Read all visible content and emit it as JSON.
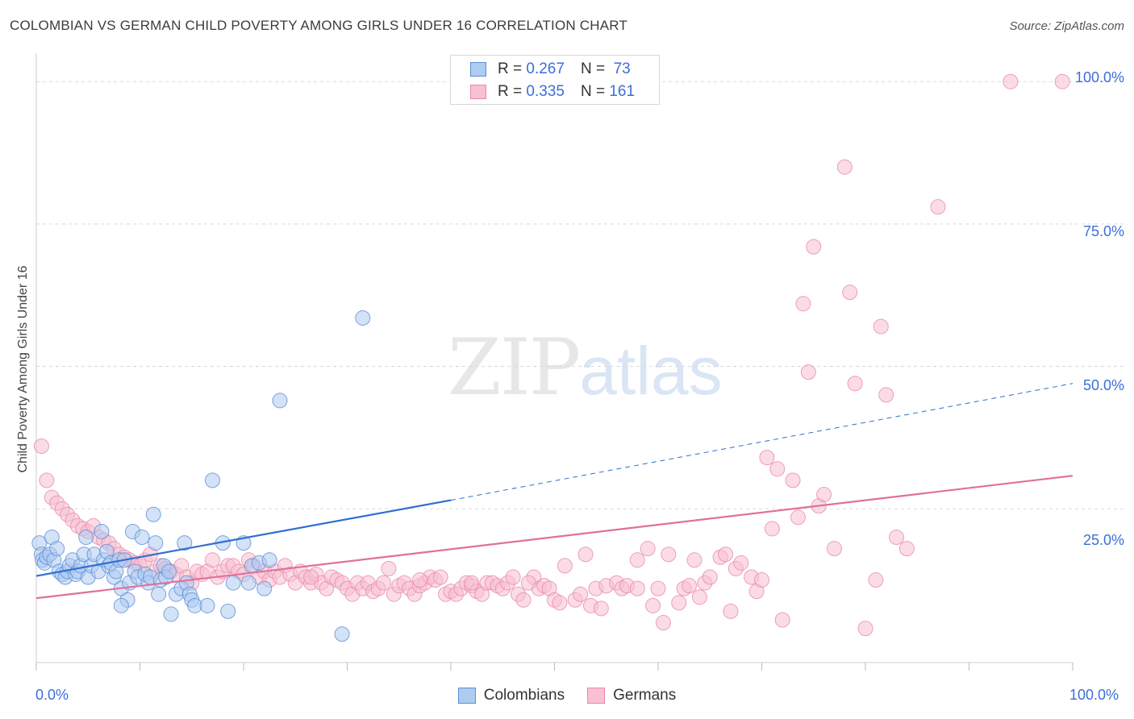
{
  "title": "COLOMBIAN VS GERMAN CHILD POVERTY AMONG GIRLS UNDER 16 CORRELATION CHART",
  "source": "Source: ZipAtlas.com",
  "watermark": {
    "zip": "ZIP",
    "atlas": "atlas"
  },
  "legend": {
    "rows": [
      {
        "r_label": "R =",
        "r_value": "0.267",
        "n_label": "N =",
        "n_value": "73"
      },
      {
        "r_label": "R =",
        "r_value": "0.335",
        "n_label": "N =",
        "n_value": "161"
      }
    ]
  },
  "colors": {
    "colombians_fill": "#aecbf0",
    "colombians_stroke": "#5b8fd6",
    "colombians_line": "#2f6fd0",
    "germans_fill": "#f8c0d2",
    "germans_stroke": "#e889a8",
    "germans_line": "#e0709a",
    "grid": "#d9d9d9",
    "tick_label": "#3a6fd8"
  },
  "chart_data": {
    "type": "scatter",
    "title": "COLOMBIAN VS GERMAN CHILD POVERTY AMONG GIRLS UNDER 16 CORRELATION CHART",
    "xlabel": "",
    "ylabel": "Child Poverty Among Girls Under 16",
    "xlim": [
      0,
      100
    ],
    "ylim": [
      -2,
      103
    ],
    "x_tick_labels": [
      "0.0%",
      "100.0%"
    ],
    "y_ticks": [
      25,
      50,
      75,
      100
    ],
    "y_tick_labels": [
      "25.0%",
      "50.0%",
      "75.0%",
      "100.0%"
    ],
    "grid": true,
    "legend_position": "top-center",
    "series": [
      {
        "name": "Colombians",
        "R": 0.267,
        "N": 73,
        "trend": {
          "x0": 0,
          "y0": 13.2,
          "x1": 40,
          "y1": 26.5,
          "dashed_to_x": 100,
          "dashed_to_y": 47
        },
        "points": [
          [
            0.3,
            19
          ],
          [
            0.5,
            17
          ],
          [
            0.6,
            16
          ],
          [
            0.8,
            15.5
          ],
          [
            1,
            16.5
          ],
          [
            1.3,
            17
          ],
          [
            1.5,
            20
          ],
          [
            1.7,
            16
          ],
          [
            2,
            18
          ],
          [
            2.2,
            14
          ],
          [
            2.5,
            13.5
          ],
          [
            2.8,
            13
          ],
          [
            3,
            14
          ],
          [
            3.2,
            15
          ],
          [
            3.5,
            16
          ],
          [
            3.8,
            13.5
          ],
          [
            4,
            14
          ],
          [
            4.3,
            15
          ],
          [
            4.6,
            17
          ],
          [
            4.8,
            20
          ],
          [
            5,
            13
          ],
          [
            5.3,
            15
          ],
          [
            5.6,
            17
          ],
          [
            6,
            14
          ],
          [
            6.3,
            21
          ],
          [
            6.5,
            16
          ],
          [
            6.8,
            17.5
          ],
          [
            7,
            15
          ],
          [
            7.2,
            15.5
          ],
          [
            7.5,
            13
          ],
          [
            7.7,
            14
          ],
          [
            8,
            16
          ],
          [
            8.2,
            11
          ],
          [
            8.5,
            16
          ],
          [
            8.8,
            9
          ],
          [
            9,
            12
          ],
          [
            9.3,
            21
          ],
          [
            9.5,
            14
          ],
          [
            9.8,
            13
          ],
          [
            10.2,
            20
          ],
          [
            10.5,
            13.5
          ],
          [
            10.8,
            12
          ],
          [
            11,
            13
          ],
          [
            11.3,
            24
          ],
          [
            11.5,
            19
          ],
          [
            11.8,
            10
          ],
          [
            12,
            12.5
          ],
          [
            12.3,
            15
          ],
          [
            12.5,
            13
          ],
          [
            12.8,
            14
          ],
          [
            13,
            6.5
          ],
          [
            13.5,
            10
          ],
          [
            14,
            11
          ],
          [
            14.3,
            19
          ],
          [
            14.5,
            12
          ],
          [
            14.8,
            10
          ],
          [
            15,
            9
          ],
          [
            15.3,
            8
          ],
          [
            16.5,
            8
          ],
          [
            17,
            30
          ],
          [
            18,
            19
          ],
          [
            18.5,
            7
          ],
          [
            19,
            12
          ],
          [
            20,
            19
          ],
          [
            20.5,
            12
          ],
          [
            20.8,
            15
          ],
          [
            21.5,
            15.5
          ],
          [
            22,
            11
          ],
          [
            22.5,
            16
          ],
          [
            23.5,
            44
          ],
          [
            31.5,
            58.5
          ],
          [
            29.5,
            3
          ],
          [
            8.2,
            8
          ]
        ]
      },
      {
        "name": "Germans",
        "R": 0.335,
        "N": 161,
        "trend": {
          "x0": 0,
          "y0": 9.3,
          "x1": 100,
          "y1": 30.8
        },
        "points": [
          [
            0.5,
            36
          ],
          [
            1,
            30
          ],
          [
            1.5,
            27
          ],
          [
            2,
            26
          ],
          [
            2.5,
            25
          ],
          [
            3,
            24
          ],
          [
            3.5,
            23
          ],
          [
            4,
            22
          ],
          [
            4.5,
            21.5
          ],
          [
            5,
            21
          ],
          [
            5.5,
            22
          ],
          [
            6,
            20
          ],
          [
            6.5,
            19.5
          ],
          [
            7,
            19
          ],
          [
            7.5,
            18
          ],
          [
            8,
            17
          ],
          [
            8.5,
            16.5
          ],
          [
            9,
            16
          ],
          [
            9.5,
            15.5
          ],
          [
            10,
            15
          ],
          [
            10.5,
            16
          ],
          [
            11,
            17
          ],
          [
            11.5,
            14
          ],
          [
            12,
            15
          ],
          [
            12.5,
            14.5
          ],
          [
            13,
            14
          ],
          [
            13.5,
            13.5
          ],
          [
            14,
            15
          ],
          [
            14.5,
            13
          ],
          [
            15,
            12
          ],
          [
            15.5,
            14
          ],
          [
            16,
            13.5
          ],
          [
            16.5,
            14
          ],
          [
            17,
            16
          ],
          [
            17.5,
            13
          ],
          [
            18,
            14
          ],
          [
            18.5,
            15
          ],
          [
            19,
            15
          ],
          [
            19.5,
            14
          ],
          [
            20,
            13.5
          ],
          [
            20.5,
            16
          ],
          [
            21,
            15
          ],
          [
            21.5,
            13
          ],
          [
            22,
            14
          ],
          [
            22.5,
            12.5
          ],
          [
            23,
            14
          ],
          [
            23.5,
            13
          ],
          [
            24,
            15
          ],
          [
            24.5,
            13.5
          ],
          [
            25,
            12
          ],
          [
            25.5,
            14
          ],
          [
            26,
            13
          ],
          [
            26.5,
            12
          ],
          [
            27,
            13.5
          ],
          [
            27.5,
            12
          ],
          [
            28,
            11
          ],
          [
            28.5,
            13
          ],
          [
            29,
            12.5
          ],
          [
            29.5,
            12
          ],
          [
            30,
            11
          ],
          [
            30.5,
            10
          ],
          [
            31,
            12
          ],
          [
            31.5,
            11
          ],
          [
            32,
            12
          ],
          [
            32.5,
            10.5
          ],
          [
            33,
            11
          ],
          [
            33.5,
            12
          ],
          [
            34,
            14.5
          ],
          [
            34.5,
            10
          ],
          [
            35,
            11.5
          ],
          [
            35.5,
            12
          ],
          [
            36,
            11
          ],
          [
            36.5,
            10
          ],
          [
            37,
            11.5
          ],
          [
            37.5,
            12
          ],
          [
            38,
            13
          ],
          [
            38.5,
            12.5
          ],
          [
            39,
            13
          ],
          [
            39.5,
            10
          ],
          [
            40,
            10.5
          ],
          [
            40.5,
            10
          ],
          [
            41,
            11
          ],
          [
            41.5,
            12
          ],
          [
            42,
            11.5
          ],
          [
            42.5,
            10.5
          ],
          [
            43,
            10
          ],
          [
            43.5,
            12
          ],
          [
            44,
            12
          ],
          [
            44.5,
            11.5
          ],
          [
            45,
            11
          ],
          [
            45.5,
            12
          ],
          [
            46,
            13
          ],
          [
            46.5,
            10
          ],
          [
            47,
            9
          ],
          [
            48,
            13
          ],
          [
            48.5,
            11
          ],
          [
            49,
            11.5
          ],
          [
            49.5,
            11
          ],
          [
            50,
            9
          ],
          [
            50.5,
            8.5
          ],
          [
            51,
            15
          ],
          [
            52,
            9
          ],
          [
            52.5,
            10
          ],
          [
            53,
            17
          ],
          [
            53.5,
            8
          ],
          [
            54,
            11
          ],
          [
            54.5,
            7.5
          ],
          [
            55,
            11.5
          ],
          [
            56,
            12
          ],
          [
            56.5,
            11
          ],
          [
            57,
            11.5
          ],
          [
            58,
            11
          ],
          [
            59,
            18
          ],
          [
            59.5,
            8
          ],
          [
            60,
            11
          ],
          [
            60.5,
            5
          ],
          [
            61,
            17
          ],
          [
            62,
            8.5
          ],
          [
            62.5,
            11
          ],
          [
            63,
            11.5
          ],
          [
            63.5,
            16
          ],
          [
            64,
            9.5
          ],
          [
            64.5,
            12
          ],
          [
            65,
            13
          ],
          [
            66,
            16.5
          ],
          [
            67,
            7
          ],
          [
            67.5,
            14.5
          ],
          [
            68,
            15.5
          ],
          [
            69,
            13
          ],
          [
            69.5,
            10.5
          ],
          [
            70,
            12.5
          ],
          [
            70.5,
            34
          ],
          [
            71,
            21.5
          ],
          [
            71.5,
            32
          ],
          [
            72,
            5.5
          ],
          [
            73,
            30
          ],
          [
            73.5,
            23.5
          ],
          [
            74,
            61
          ],
          [
            74.5,
            49
          ],
          [
            75,
            71
          ],
          [
            75.5,
            25.5
          ],
          [
            76,
            27.5
          ],
          [
            77,
            18
          ],
          [
            78,
            85
          ],
          [
            78.5,
            63
          ],
          [
            79,
            47
          ],
          [
            80,
            4
          ],
          [
            81,
            12.5
          ],
          [
            81.5,
            57
          ],
          [
            82,
            45
          ],
          [
            83,
            20
          ],
          [
            84,
            18
          ],
          [
            87,
            78
          ],
          [
            94,
            100
          ],
          [
            99,
            100
          ],
          [
            58,
            16
          ],
          [
            42,
            12
          ],
          [
            26.5,
            13
          ],
          [
            37,
            12.5
          ],
          [
            47.5,
            12
          ],
          [
            66.5,
            17
          ]
        ]
      }
    ]
  },
  "axis": {
    "y_title": "Child Poverty Among Girls Under 16",
    "x_min_label": "0.0%",
    "x_max_label": "100.0%",
    "y_labels": [
      "25.0%",
      "50.0%",
      "75.0%",
      "100.0%"
    ]
  },
  "bottom_legend": [
    "Colombians",
    "Germans"
  ]
}
